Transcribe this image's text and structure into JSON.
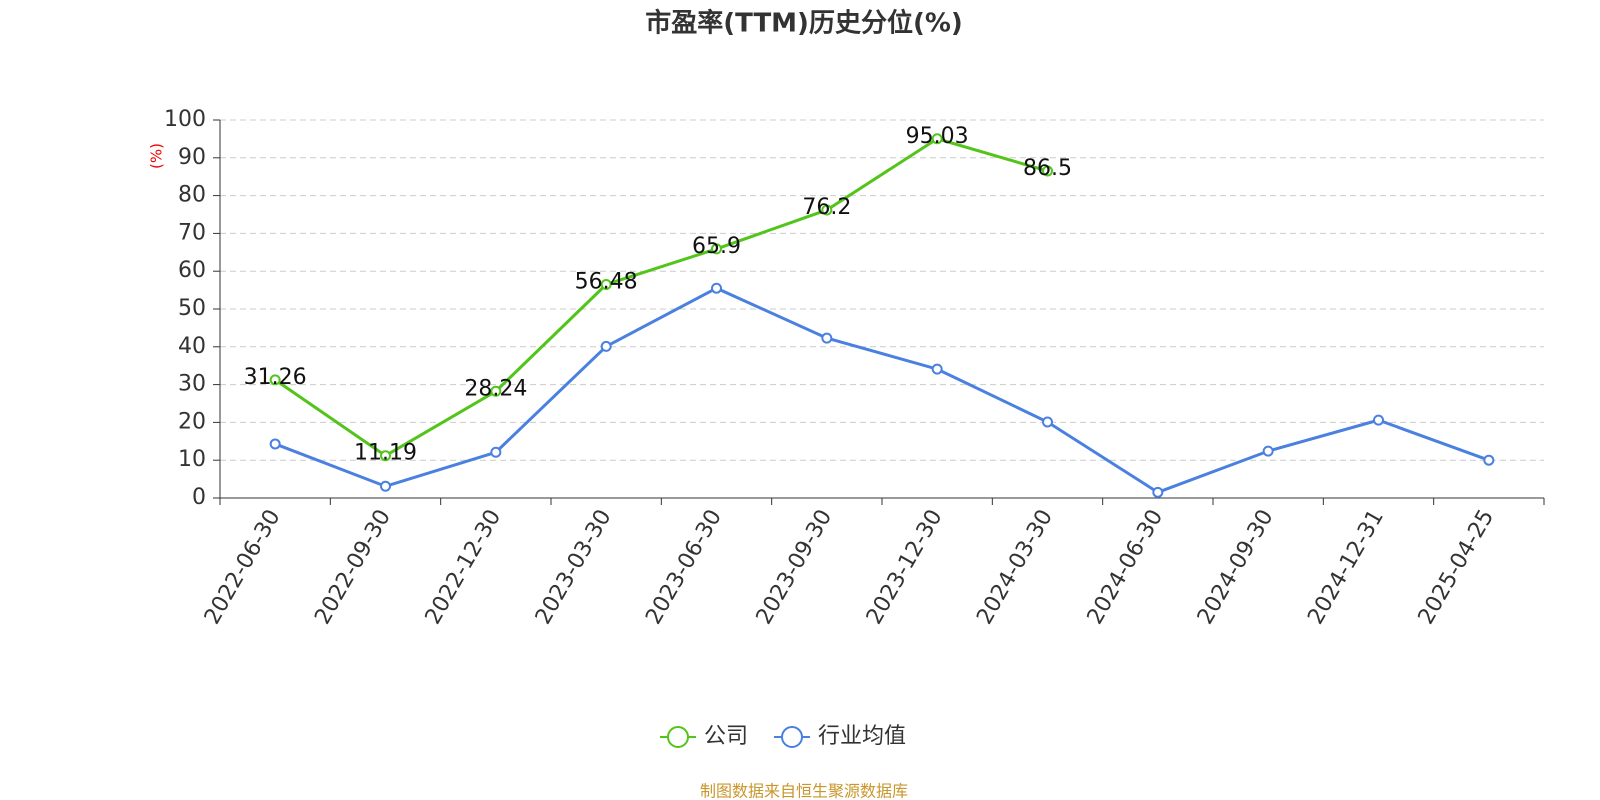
{
  "chart_data": {
    "type": "line",
    "title": "市盈率(TTM)历史分位(%)",
    "y_label": "(%)",
    "categories": [
      "2022-06-30",
      "2022-09-30",
      "2022-12-30",
      "2023-03-30",
      "2023-06-30",
      "2023-09-30",
      "2023-12-30",
      "2024-03-30",
      "2024-06-30",
      "2024-09-30",
      "2024-12-31",
      "2025-04-25"
    ],
    "series": [
      {
        "name": "公司",
        "color": "#52c41a",
        "values": [
          31.26,
          11.19,
          28.24,
          56.48,
          65.9,
          76.2,
          95.03,
          86.5,
          null,
          null,
          null,
          null
        ],
        "show_labels": true
      },
      {
        "name": "行业均值",
        "color": "#4a80e0",
        "values": [
          14.3,
          3.1,
          12.1,
          40.1,
          55.5,
          42.3,
          34.1,
          20.1,
          1.5,
          12.4,
          20.6,
          10.0
        ],
        "show_labels": false
      }
    ],
    "ylim": [
      0,
      100
    ],
    "yticks": [
      0,
      10,
      20,
      30,
      40,
      50,
      60,
      70,
      80,
      90,
      100
    ],
    "grid": true,
    "legend": "bottom",
    "source": "制图数据来自恒生聚源数据库"
  }
}
